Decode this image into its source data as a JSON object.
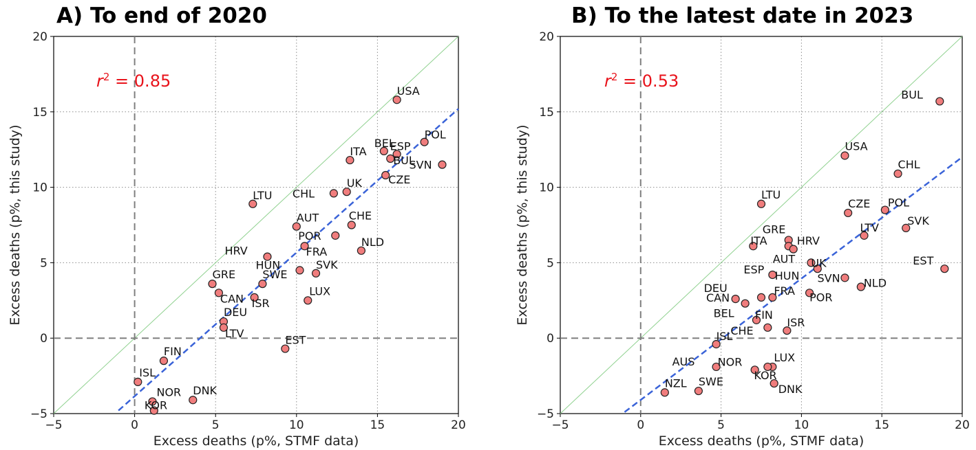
{
  "chart_data": [
    {
      "type": "scatter",
      "title": "A) To end of 2020",
      "xlabel": "Excess deaths (p%, STMF data)",
      "ylabel": "Excess deaths (p%, this study)",
      "xlim": [
        -5,
        20
      ],
      "ylim": [
        -5,
        20
      ],
      "xticks": [
        "−5",
        "0",
        "5",
        "10",
        "15",
        "20"
      ],
      "yticks": [
        "−5",
        "0",
        "5",
        "10",
        "15",
        "20"
      ],
      "grid": true,
      "r2_prefix": "r",
      "r2_sup": "2",
      "r2_value": " = 0.85",
      "fit_line": {
        "x": [
          -1,
          20
        ],
        "y": [
          -4.8,
          15.2
        ]
      },
      "identity_line": true,
      "colors": {
        "point": "#f07d7d",
        "fit": "#3a63d8",
        "identity": "#8fd18f",
        "annotation": "#e8131b"
      },
      "points": [
        {
          "label": "USA",
          "x": 16.2,
          "y": 15.8
        },
        {
          "label": "POL",
          "x": 17.9,
          "y": 13.0
        },
        {
          "label": "BEL",
          "x": 15.4,
          "y": 12.4
        },
        {
          "label": "ESP",
          "x": 16.2,
          "y": 12.2
        },
        {
          "label": "ITA",
          "x": 13.3,
          "y": 11.8
        },
        {
          "label": "BUL",
          "x": 15.8,
          "y": 11.9
        },
        {
          "label": "SVN",
          "x": 19.0,
          "y": 11.5
        },
        {
          "label": "CZE",
          "x": 15.5,
          "y": 10.8
        },
        {
          "label": "CHL",
          "x": 12.3,
          "y": 9.6
        },
        {
          "label": "UK",
          "x": 13.1,
          "y": 9.7
        },
        {
          "label": "LTU",
          "x": 7.3,
          "y": 8.9
        },
        {
          "label": "AUT",
          "x": 10.0,
          "y": 7.4
        },
        {
          "label": "CHE",
          "x": 13.4,
          "y": 7.5
        },
        {
          "label": "POR",
          "x": 12.4,
          "y": 6.8
        },
        {
          "label": "FRA",
          "x": 10.5,
          "y": 6.1
        },
        {
          "label": "NLD",
          "x": 14.0,
          "y": 5.8
        },
        {
          "label": "HRV",
          "x": 8.2,
          "y": 5.4
        },
        {
          "label": "HUN",
          "x": 10.2,
          "y": 4.5
        },
        {
          "label": "SVK",
          "x": 11.2,
          "y": 4.3
        },
        {
          "label": "GRE",
          "x": 4.8,
          "y": 3.6
        },
        {
          "label": "SWE",
          "x": 7.9,
          "y": 3.6
        },
        {
          "label": "CAN",
          "x": 5.2,
          "y": 3.0
        },
        {
          "label": "ISR",
          "x": 7.4,
          "y": 2.7
        },
        {
          "label": "LUX",
          "x": 10.7,
          "y": 2.5
        },
        {
          "label": "DEU",
          "x": 5.5,
          "y": 1.1
        },
        {
          "label": "LTV",
          "x": 5.5,
          "y": 0.7
        },
        {
          "label": "EST",
          "x": 9.3,
          "y": -0.7
        },
        {
          "label": "FIN",
          "x": 1.8,
          "y": -1.5
        },
        {
          "label": "ISL",
          "x": 0.2,
          "y": -2.9
        },
        {
          "label": "NOR",
          "x": 1.1,
          "y": -4.2
        },
        {
          "label": "DNK",
          "x": 3.6,
          "y": -4.1
        },
        {
          "label": "KOR",
          "x": 1.2,
          "y": -4.8
        }
      ]
    },
    {
      "type": "scatter",
      "title": "B) To the latest date in 2023",
      "xlabel": "Excess deaths (p%, STMF data)",
      "ylabel": "Excess deaths (p%, this study)",
      "xlim": [
        -5,
        20
      ],
      "ylim": [
        -5,
        20
      ],
      "xticks": [
        "−5",
        "0",
        "5",
        "10",
        "15",
        "20"
      ],
      "yticks": [
        "−5",
        "0",
        "5",
        "10",
        "15",
        "20"
      ],
      "grid": true,
      "r2_prefix": "r",
      "r2_sup": "2",
      "r2_value": " = 0.53",
      "fit_line": {
        "x": [
          -1,
          20
        ],
        "y": [
          -4.9,
          12.0
        ]
      },
      "identity_line": true,
      "colors": {
        "point": "#f07d7d",
        "fit": "#3a63d8",
        "identity": "#8fd18f",
        "annotation": "#e8131b"
      },
      "points": [
        {
          "label": "BUL",
          "x": 18.6,
          "y": 15.7
        },
        {
          "label": "USA",
          "x": 12.7,
          "y": 12.1
        },
        {
          "label": "CHL",
          "x": 16.0,
          "y": 10.9
        },
        {
          "label": "LTU",
          "x": 7.5,
          "y": 8.9
        },
        {
          "label": "CZE",
          "x": 12.9,
          "y": 8.3
        },
        {
          "label": "POL",
          "x": 15.2,
          "y": 8.5
        },
        {
          "label": "SVK",
          "x": 16.5,
          "y": 7.3
        },
        {
          "label": "LTV",
          "x": 13.9,
          "y": 6.8
        },
        {
          "label": "GRE",
          "x": 9.2,
          "y": 6.5
        },
        {
          "label": "ITA",
          "x": 7.0,
          "y": 6.1
        },
        {
          "label": "HRV",
          "x": 9.2,
          "y": 6.1
        },
        {
          "label": "AUT",
          "x": 9.5,
          "y": 5.9
        },
        {
          "label": "UK",
          "x": 10.6,
          "y": 5.0
        },
        {
          "label": "EST",
          "x": 18.9,
          "y": 4.6
        },
        {
          "label": "HUN",
          "x": 11.0,
          "y": 4.6
        },
        {
          "label": "ESP",
          "x": 8.2,
          "y": 4.2
        },
        {
          "label": "SVN",
          "x": 12.7,
          "y": 4.0
        },
        {
          "label": "NLD",
          "x": 13.7,
          "y": 3.4
        },
        {
          "label": "POR",
          "x": 10.5,
          "y": 3.0
        },
        {
          "label": "DEU",
          "x": 5.9,
          "y": 2.6
        },
        {
          "label": "FRA",
          "x": 8.2,
          "y": 2.7
        },
        {
          "label": "CAN",
          "x": 7.5,
          "y": 2.7
        },
        {
          "label": "BEL",
          "x": 6.5,
          "y": 2.3
        },
        {
          "label": "FIN",
          "x": 7.2,
          "y": 1.2
        },
        {
          "label": "CHE",
          "x": 7.9,
          "y": 0.7
        },
        {
          "label": "ISR",
          "x": 9.1,
          "y": 0.5
        },
        {
          "label": "ISL",
          "x": 4.7,
          "y": -0.4
        },
        {
          "label": "AUS",
          "x": 4.7,
          "y": -1.9
        },
        {
          "label": "NOR",
          "x": 7.1,
          "y": -2.1
        },
        {
          "label": "LUX",
          "x": 8.2,
          "y": -1.9
        },
        {
          "label": "KOR",
          "x": 7.9,
          "y": -1.9
        },
        {
          "label": "DNK",
          "x": 8.3,
          "y": -3.0
        },
        {
          "label": "NZL",
          "x": 1.5,
          "y": -3.6
        },
        {
          "label": "SWE",
          "x": 3.6,
          "y": -3.5
        }
      ]
    }
  ]
}
